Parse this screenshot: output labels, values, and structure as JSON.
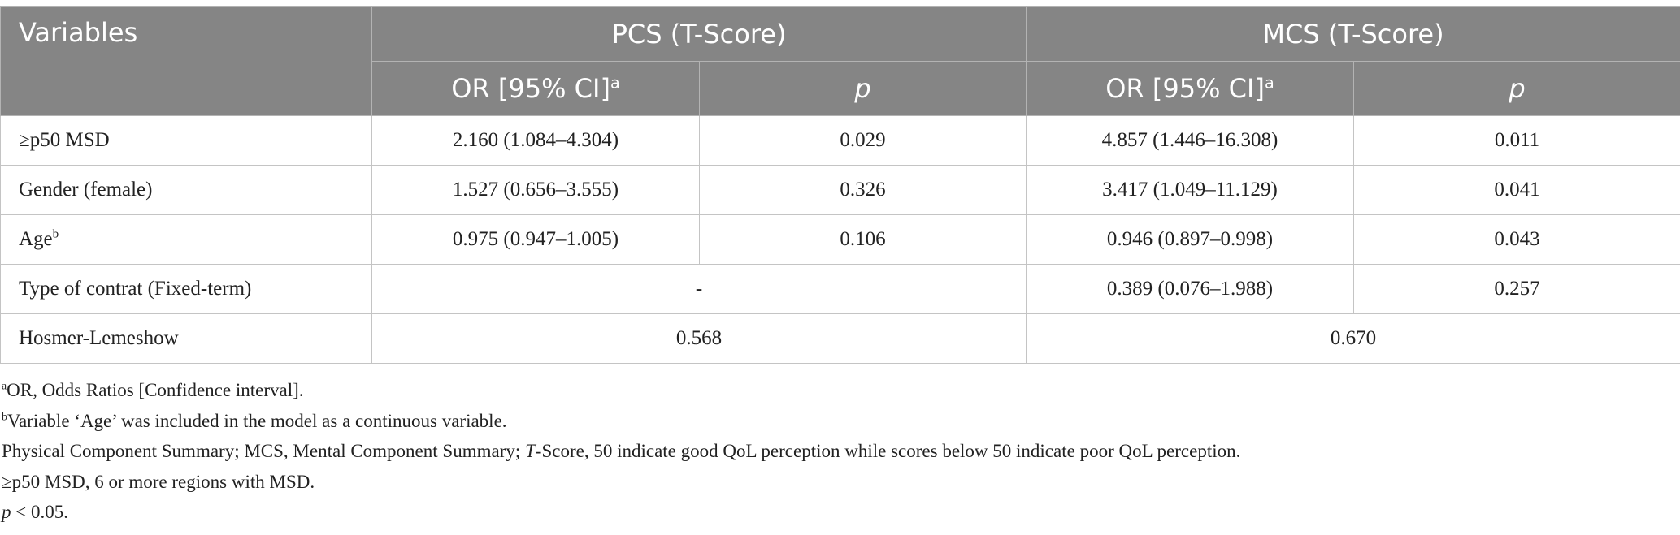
{
  "table": {
    "header": {
      "variables": "Variables",
      "pcs": "PCS (T-Score)",
      "mcs": "MCS (T-Score)",
      "or_label": "OR [95% CI]",
      "or_sup": "a",
      "p_label": "p"
    },
    "rows": [
      {
        "label": "≥p50 MSD",
        "pcs_or": "2.160 (1.084–4.304)",
        "pcs_p": "0.029",
        "mcs_or": "4.857 (1.446–16.308)",
        "mcs_p": "0.011"
      },
      {
        "label": "Gender (female)",
        "pcs_or": "1.527 (0.656–3.555)",
        "pcs_p": "0.326",
        "mcs_or": "3.417 (1.049–11.129)",
        "mcs_p": "0.041"
      },
      {
        "label": "Age",
        "label_sup": "b",
        "pcs_or": "0.975 (0.947–1.005)",
        "pcs_p": "0.106",
        "mcs_or": "0.946 (0.897–0.998)",
        "mcs_p": "0.043"
      },
      {
        "label": "Type of contrat (Fixed-term)",
        "pcs_merged": "-",
        "mcs_or": "0.389 (0.076–1.988)",
        "mcs_p": "0.257"
      },
      {
        "label": "Hosmer-Lemeshow",
        "pcs_merged": "0.568",
        "mcs_merged": "0.670"
      }
    ]
  },
  "footnotes": {
    "a_sup": "a",
    "a_text": "OR, Odds Ratios [Confidence interval].",
    "b_sup": "b",
    "b_text": "Variable ‘Age’ was included in the model as a continuous variable.",
    "line3_pre": "Physical Component Summary; MCS, Mental Component Summary; ",
    "line3_italic": "T",
    "line3_post": "-Score, 50 indicate good QoL perception while scores below 50 indicate poor QoL perception.",
    "line4": "≥p50 MSD, 6 or more regions with MSD.",
    "line5_italic": "p",
    "line5_post": " < 0.05."
  }
}
